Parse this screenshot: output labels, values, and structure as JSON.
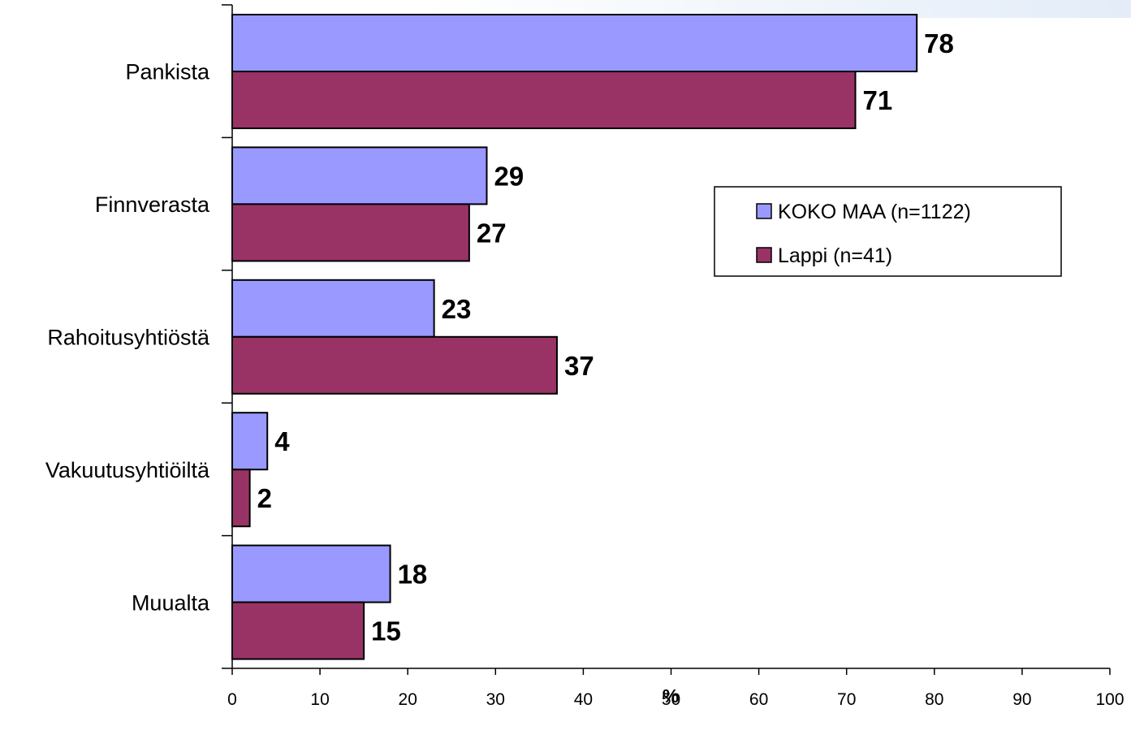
{
  "chart_data": {
    "type": "bar",
    "orientation": "horizontal",
    "categories": [
      "Pankista",
      "Finnverasta",
      "Rahoitusyhtiöstä",
      "Vakuutusyhtiöiltä",
      "Muualta"
    ],
    "series": [
      {
        "name": "KOKO MAA (n=1122)",
        "color": "#9999ff",
        "values": [
          78,
          29,
          23,
          4,
          18
        ]
      },
      {
        "name": "Lappi (n=41)",
        "color": "#993366",
        "values": [
          71,
          27,
          37,
          2,
          15
        ]
      }
    ],
    "xlabel": "%",
    "ylabel": "",
    "xlim": [
      0,
      100
    ],
    "x_ticks": [
      0,
      10,
      20,
      30,
      40,
      50,
      60,
      70,
      80,
      90,
      100
    ],
    "grid": false,
    "legend_position": "right"
  }
}
